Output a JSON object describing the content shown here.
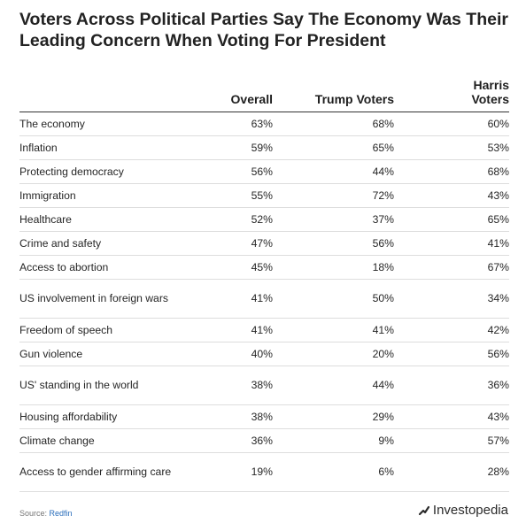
{
  "chart_data": {
    "type": "table",
    "title": "Voters Across Political Parties Say The Economy Was Their Leading Concern When Voting For President",
    "columns": [
      "",
      "Overall",
      "Trump Voters",
      "Harris Voters"
    ],
    "rows": [
      {
        "issue": "The economy",
        "overall": "63%",
        "trump": "68%",
        "harris": "60%"
      },
      {
        "issue": "Inflation",
        "overall": "59%",
        "trump": "65%",
        "harris": "53%"
      },
      {
        "issue": "Protecting democracy",
        "overall": "56%",
        "trump": "44%",
        "harris": "68%"
      },
      {
        "issue": "Immigration",
        "overall": "55%",
        "trump": "72%",
        "harris": "43%"
      },
      {
        "issue": "Healthcare",
        "overall": "52%",
        "trump": "37%",
        "harris": "65%"
      },
      {
        "issue": "Crime and safety",
        "overall": "47%",
        "trump": "56%",
        "harris": "41%"
      },
      {
        "issue": "Access to abortion",
        "overall": "45%",
        "trump": "18%",
        "harris": "67%"
      },
      {
        "issue": "US involvement in foreign wars",
        "overall": "41%",
        "trump": "50%",
        "harris": "34%"
      },
      {
        "issue": "Freedom of speech",
        "overall": "41%",
        "trump": "41%",
        "harris": "42%"
      },
      {
        "issue": "Gun violence",
        "overall": "40%",
        "trump": "20%",
        "harris": "56%"
      },
      {
        "issue": "US' standing in the world",
        "overall": "38%",
        "trump": "44%",
        "harris": "36%"
      },
      {
        "issue": "Housing affordability",
        "overall": "38%",
        "trump": "29%",
        "harris": "43%"
      },
      {
        "issue": "Climate change",
        "overall": "36%",
        "trump": "9%",
        "harris": "57%"
      },
      {
        "issue": "Access to gender affirming care",
        "overall": "19%",
        "trump": "6%",
        "harris": "28%"
      }
    ]
  },
  "source": {
    "label": "Source:",
    "name": "Redfin"
  },
  "brand": {
    "name": "Investopedia",
    "icon": "investopedia-logo-icon"
  }
}
